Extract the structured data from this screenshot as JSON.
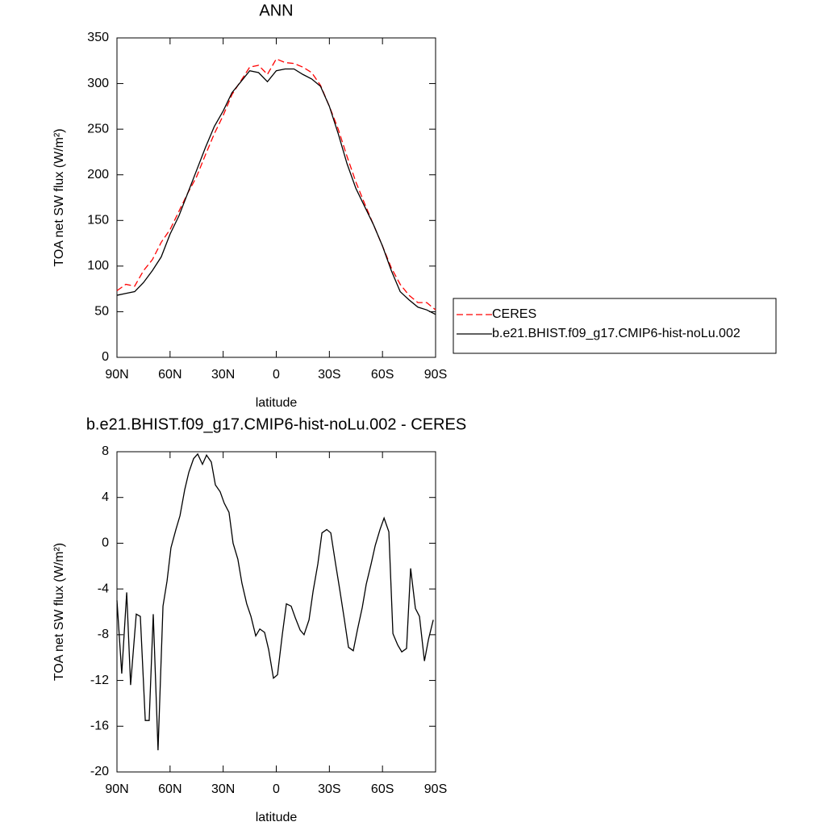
{
  "chart_data": [
    {
      "type": "line",
      "title": "ANN",
      "xlabel": "latitude",
      "ylabel": "TOA net SW flux (W/m²)",
      "x": [
        90,
        85,
        80,
        75,
        70,
        65,
        60,
        55,
        50,
        45,
        40,
        35,
        30,
        25,
        20,
        15,
        10,
        5,
        0,
        -5,
        -10,
        -15,
        -20,
        -25,
        -30,
        -35,
        -40,
        -45,
        -50,
        -55,
        -60,
        -65,
        -70,
        -75,
        -80,
        -85,
        -90
      ],
      "series": [
        {
          "name": "CERES",
          "color": "#ff0000",
          "line_style": "dashed",
          "values": [
            73,
            80,
            78,
            95,
            107,
            126,
            140,
            160,
            180,
            198,
            222,
            245,
            265,
            288,
            303,
            318,
            320,
            310,
            327,
            323,
            322,
            318,
            312,
            298,
            275,
            250,
            220,
            192,
            168,
            145,
            122,
            98,
            80,
            68,
            60,
            60,
            52
          ]
        },
        {
          "name": "b.e21.BHIST.f09_g17.CMIP6-hist-noLu.002",
          "color": "#000000",
          "line_style": "solid",
          "values": [
            68,
            70,
            72,
            82,
            95,
            110,
            135,
            155,
            180,
            205,
            230,
            253,
            270,
            290,
            302,
            314,
            312,
            302,
            314,
            316,
            316,
            310,
            305,
            297,
            275,
            245,
            212,
            185,
            165,
            145,
            122,
            95,
            72,
            63,
            55,
            52,
            47
          ]
        }
      ],
      "xlim": [
        90,
        -90
      ],
      "ylim": [
        0,
        350
      ],
      "xticks": [
        {
          "value": 90,
          "label": "90N"
        },
        {
          "value": 60,
          "label": "60N"
        },
        {
          "value": 30,
          "label": "30N"
        },
        0,
        {
          "value": -30,
          "label": "30S"
        },
        {
          "value": -60,
          "label": "60S"
        },
        {
          "value": -90,
          "label": "90S"
        }
      ],
      "yticks": [
        0,
        50,
        100,
        150,
        200,
        250,
        300,
        350
      ],
      "legend": "right"
    },
    {
      "type": "line",
      "title": "b.e21.BHIST.f09_g17.CMIP6-hist-noLu.002 - CERES",
      "xlabel": "latitude",
      "ylabel": "TOA net SW flux (W/m²)",
      "x": [
        90,
        87.3,
        84.5,
        82.3,
        79.1,
        76.8,
        74,
        71.8,
        69.5,
        66.8,
        64,
        61.7,
        59.5,
        56.7,
        54.4,
        51.7,
        49.4,
        46.7,
        44.4,
        41.7,
        39.4,
        36.7,
        34.4,
        31.7,
        29.4,
        26.7,
        24.4,
        21.7,
        19.4,
        16.7,
        14.3,
        11.6,
        9.3,
        6.6,
        4.3,
        1.6,
        -0.7,
        -3.4,
        -5.7,
        -8.4,
        -10.7,
        -13.5,
        -15.7,
        -18.5,
        -20.8,
        -23.5,
        -25.8,
        -28.5,
        -30.8,
        -33.5,
        -35.8,
        -38.5,
        -40.8,
        -43.5,
        -45.8,
        -48.6,
        -50.8,
        -53.6,
        -55.9,
        -58.6,
        -60.9,
        -63.6,
        -65.9,
        -68.6,
        -70.9,
        -73.6,
        -75.9,
        -78.6,
        -80.9,
        -83.7,
        -86,
        -88.7
      ],
      "values": [
        -5,
        -11.4,
        -4.3,
        -12.4,
        -6.2,
        -6.4,
        -15.5,
        -15.5,
        -6.2,
        -18.1,
        -5.5,
        -3.3,
        -0.4,
        1.2,
        2.4,
        4.7,
        6.2,
        7.4,
        7.8,
        6.9,
        7.7,
        7.1,
        5.1,
        4.5,
        3.5,
        2.7,
        0,
        -1.4,
        -3.5,
        -5.3,
        -6.4,
        -8.1,
        -7.5,
        -7.8,
        -9.3,
        -11.8,
        -11.5,
        -8,
        -5.3,
        -5.5,
        -6.5,
        -7.6,
        -8,
        -6.7,
        -4.2,
        -1.8,
        0.9,
        1.2,
        0.9,
        -1.8,
        -4,
        -6.7,
        -9.1,
        -9.4,
        -7.6,
        -5.6,
        -3.6,
        -1.8,
        -0.2,
        1.2,
        2.2,
        1,
        -7.9,
        -8.9,
        -9.5,
        -9.2,
        -2.2,
        -5.7,
        -6.4,
        -10.3,
        -8.4,
        -6.7
      ],
      "color": "#000000",
      "xlim": [
        90,
        -90
      ],
      "ylim": [
        -20,
        8
      ],
      "xticks": [
        {
          "value": 90,
          "label": "90N"
        },
        {
          "value": 60,
          "label": "60N"
        },
        {
          "value": 30,
          "label": "30N"
        },
        0,
        {
          "value": -30,
          "label": "30S"
        },
        {
          "value": -60,
          "label": "60S"
        },
        {
          "value": -90,
          "label": "90S"
        }
      ],
      "yticks": [
        -20,
        -16,
        -12,
        -8,
        -4,
        0,
        4,
        8
      ]
    }
  ]
}
